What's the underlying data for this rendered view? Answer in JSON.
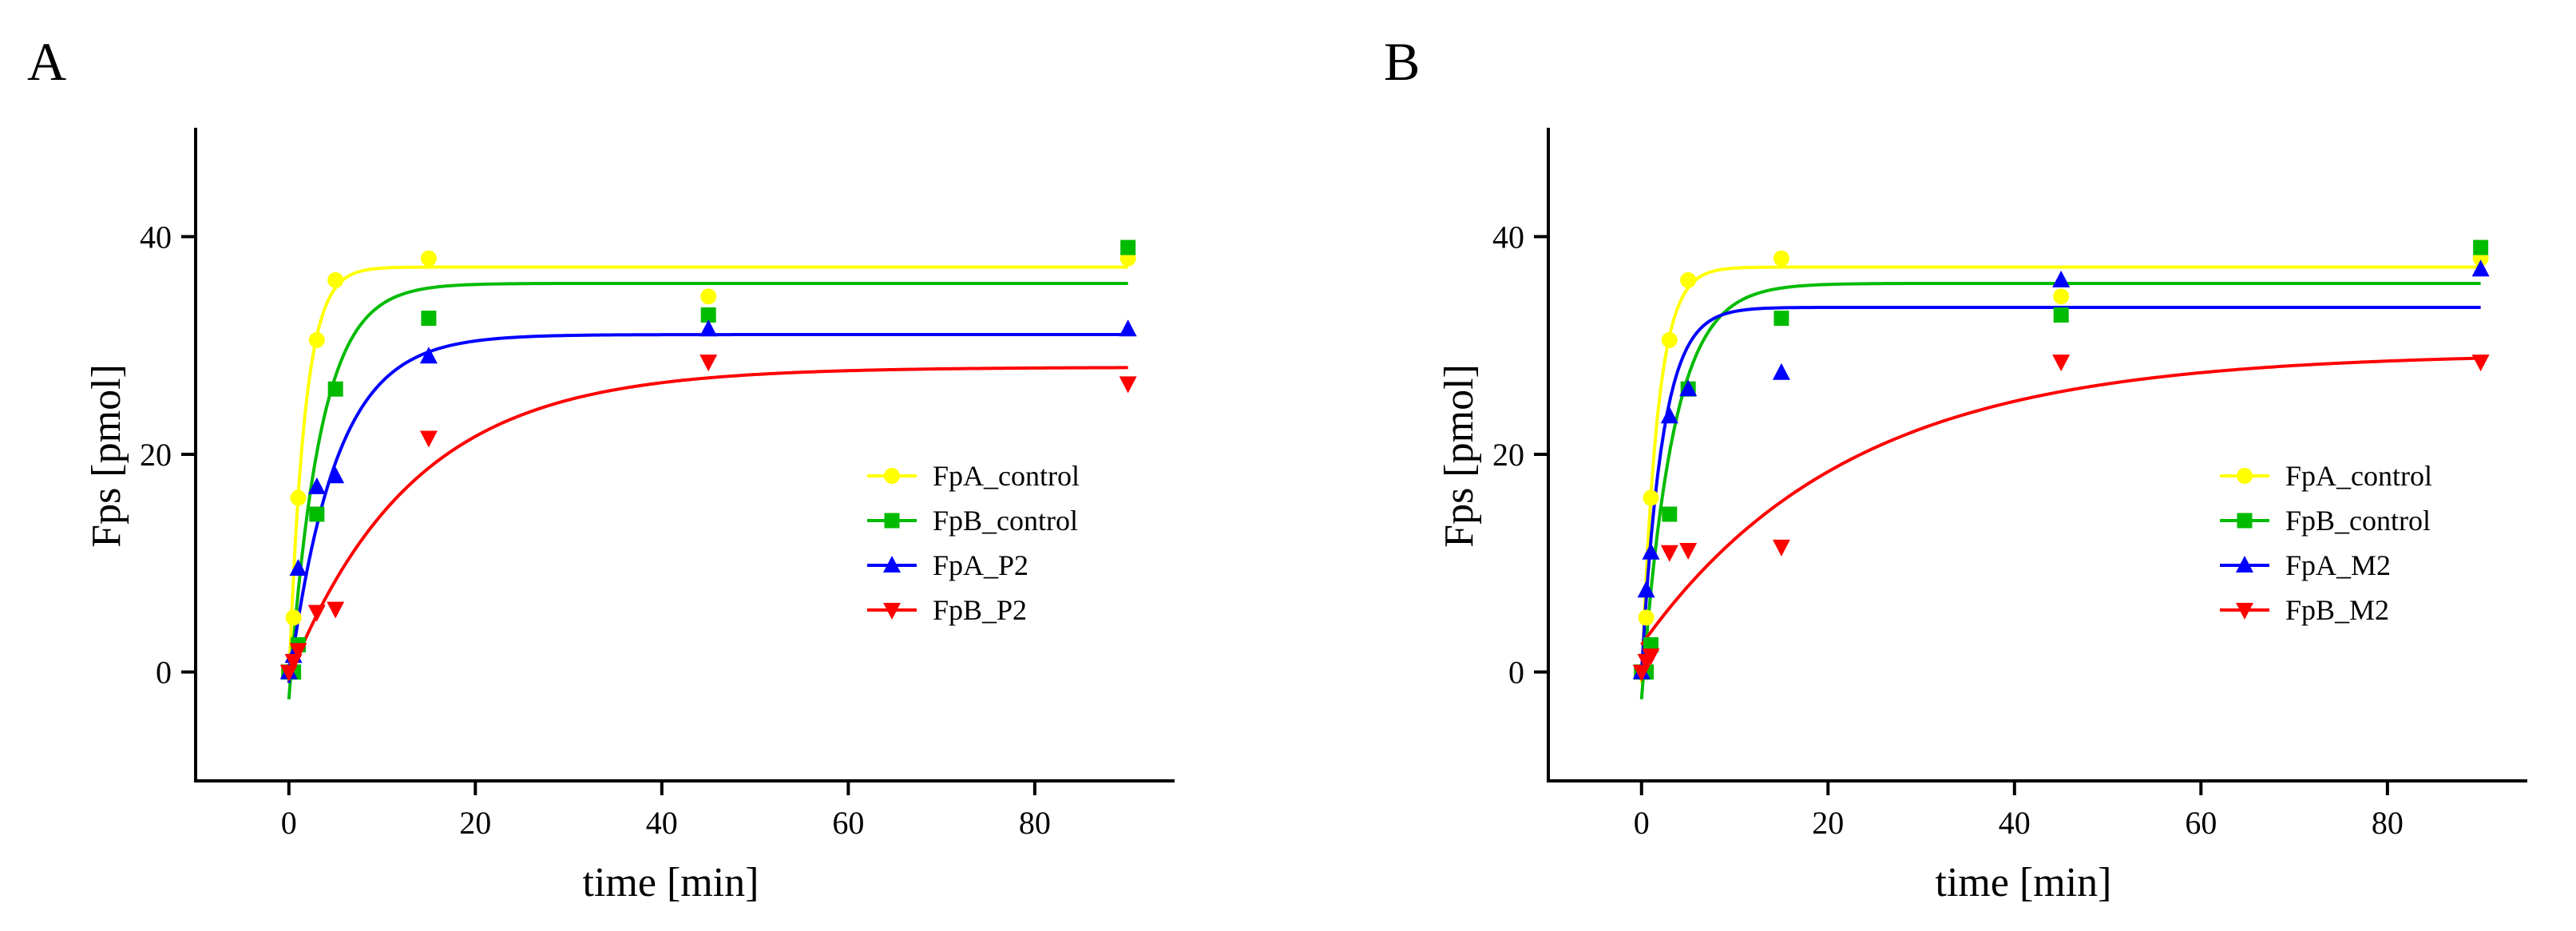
{
  "figure": {
    "panels": [
      "A",
      "B"
    ]
  },
  "chart_data": [
    {
      "type": "scatter",
      "panel_label": "A",
      "xlabel": "time [min]",
      "ylabel": "Fps [pmol]",
      "xlim": [
        -10,
        95
      ],
      "ylim": [
        -10,
        50
      ],
      "xticks": [
        0,
        20,
        40,
        60,
        80
      ],
      "yticks": [
        0,
        20,
        40
      ],
      "grid": false,
      "legend_position": "center-right",
      "series": [
        {
          "name": "FpA_control",
          "color": "#ffff00",
          "marker": "circle",
          "x": [
            0,
            0.5,
            1,
            3,
            5,
            15,
            45,
            90
          ],
          "y": [
            0,
            5,
            16,
            30.5,
            36,
            38,
            34.5,
            38
          ],
          "fit": {
            "plateau": 37.2,
            "k": 0.6,
            "y0": -1
          }
        },
        {
          "name": "FpB_control",
          "color": "#00bb00",
          "marker": "square",
          "x": [
            0,
            0.5,
            1,
            3,
            5,
            15,
            45,
            90
          ],
          "y": [
            0,
            0,
            2.5,
            14.5,
            26,
            32.5,
            32.8,
            39
          ],
          "fit": {
            "plateau": 35.7,
            "k": 0.3,
            "y0": -2.5
          }
        },
        {
          "name": "FpA_P2",
          "color": "#0000ff",
          "marker": "triangle-up",
          "x": [
            0,
            0.5,
            1,
            3,
            5,
            15,
            45,
            90
          ],
          "y": [
            0,
            1.5,
            9.5,
            17,
            18,
            29,
            31.5,
            31.5
          ],
          "fit": {
            "plateau": 31,
            "k": 0.2,
            "y0": -1
          }
        },
        {
          "name": "FpB_P2",
          "color": "#ff0000",
          "marker": "triangle-down",
          "x": [
            0,
            0.5,
            1,
            3,
            5,
            15,
            45,
            90
          ],
          "y": [
            0,
            1,
            2,
            5.5,
            5.8,
            21.5,
            28.5,
            26.5
          ],
          "fit": {
            "plateau": 28,
            "k": 0.075,
            "y0": -0.5
          }
        }
      ]
    },
    {
      "type": "scatter",
      "panel_label": "B",
      "xlabel": "time [min]",
      "ylabel": "Fps [pmol]",
      "xlim": [
        -10,
        95
      ],
      "ylim": [
        -10,
        50
      ],
      "xticks": [
        0,
        20,
        40,
        60,
        80
      ],
      "yticks": [
        0,
        20,
        40
      ],
      "grid": false,
      "legend_position": "center-right",
      "series": [
        {
          "name": "FpA_control",
          "color": "#ffff00",
          "marker": "circle",
          "x": [
            0,
            0.5,
            1,
            3,
            5,
            15,
            45,
            90
          ],
          "y": [
            0,
            5,
            16,
            30.5,
            36,
            38,
            34.5,
            38
          ],
          "fit": {
            "plateau": 37.2,
            "k": 0.6,
            "y0": -1
          }
        },
        {
          "name": "FpB_control",
          "color": "#00bb00",
          "marker": "square",
          "x": [
            0,
            0.5,
            1,
            3,
            5,
            15,
            45,
            90
          ],
          "y": [
            0,
            0,
            2.5,
            14.5,
            26,
            32.5,
            32.8,
            39
          ],
          "fit": {
            "plateau": 35.7,
            "k": 0.3,
            "y0": -2.5
          }
        },
        {
          "name": "FpA_M2",
          "color": "#0000ff",
          "marker": "triangle-up",
          "x": [
            0,
            0.5,
            1,
            3,
            5,
            15,
            45,
            90
          ],
          "y": [
            0,
            7.5,
            11,
            23.5,
            26,
            27.5,
            36,
            37
          ],
          "fit": {
            "plateau": 33.5,
            "k": 0.45,
            "y0": 0
          }
        },
        {
          "name": "FpB_M2",
          "color": "#ff0000",
          "marker": "triangle-down",
          "x": [
            0,
            0.5,
            1,
            3,
            5,
            15,
            45,
            90
          ],
          "y": [
            0,
            1,
            1.5,
            11,
            11.2,
            11.5,
            28.5,
            28.5
          ],
          "fit": {
            "plateau": 29.3,
            "k": 0.045,
            "y0": 2.5
          }
        }
      ]
    }
  ]
}
